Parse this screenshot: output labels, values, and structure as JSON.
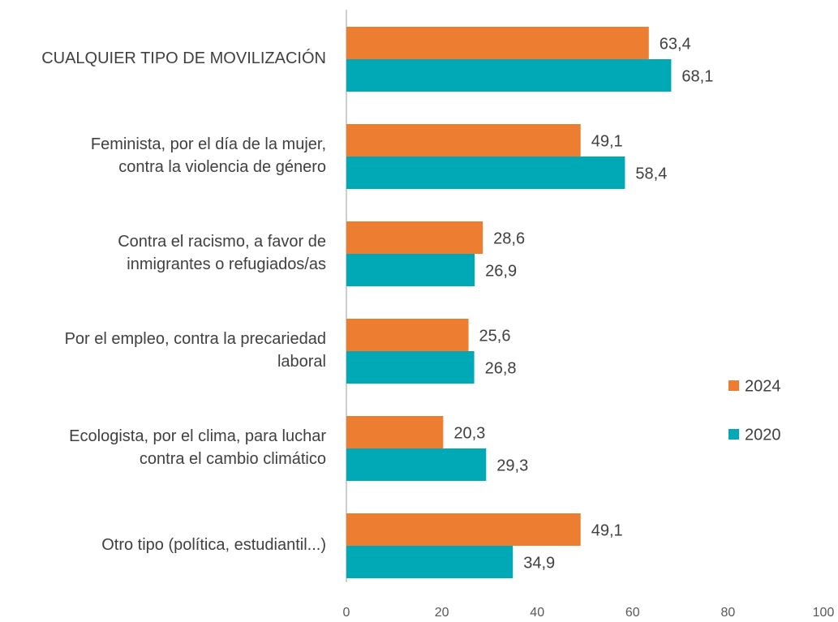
{
  "chart_data": {
    "type": "bar",
    "orientation": "horizontal",
    "categories": [
      "CUALQUIER TIPO DE MOVILIZACIÓN",
      "Feminista, por el día de la mujer,\ncontra la violencia de género",
      "Contra el racismo, a favor de\ninmigrantes o refugiados/as",
      "Por el empleo, contra la precariedad\nlaboral",
      "Ecologista, por el clima, para luchar\ncontra el cambio climático",
      "Otro tipo (política, estudiantil...)"
    ],
    "series": [
      {
        "name": "2024",
        "color": "#ED7D31",
        "values": [
          63.4,
          49.1,
          28.6,
          25.6,
          20.3,
          49.1
        ],
        "value_labels": [
          "63,4",
          "49,1",
          "28,6",
          "25,6",
          "20,3",
          "49,1"
        ]
      },
      {
        "name": "2020",
        "color": "#00A9B5",
        "values": [
          68.1,
          58.4,
          26.9,
          26.8,
          29.3,
          34.9
        ],
        "value_labels": [
          "68,1",
          "58,4",
          "26,9",
          "26,8",
          "29,3",
          "34,9"
        ]
      }
    ],
    "xlim": [
      0,
      100
    ],
    "xticks": [
      0,
      20,
      40,
      60,
      80,
      100
    ],
    "grid": false,
    "legend": "right"
  }
}
